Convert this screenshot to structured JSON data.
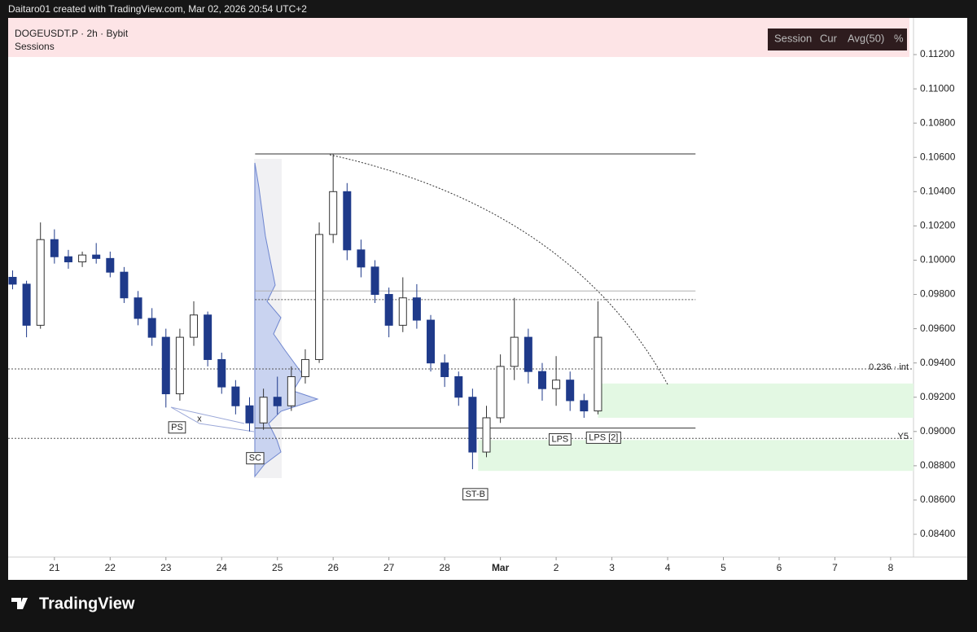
{
  "header": {
    "credit": "Daitaro01 created with TradingView.com, Mar 02, 2026 20:54 UTC+2",
    "symbol": "DOGEUSDT.P · 2h · Bybit",
    "indicator": "Sessions",
    "legend": [
      "Session",
      "Cur",
      "Avg(50)",
      "%"
    ]
  },
  "chart_data": {
    "type": "candlestick",
    "x": [
      20.25,
      20.5,
      20.75,
      21,
      21.25,
      21.5,
      21.75,
      22,
      22.25,
      22.5,
      22.75,
      23,
      23.25,
      23.5,
      23.75,
      24,
      24.25,
      24.5,
      24.75,
      25,
      25.25,
      25.5,
      25.75,
      26,
      26.25,
      26.5,
      26.75,
      27,
      27.25,
      27.5,
      27.75,
      28,
      28.25,
      28.5,
      28.75,
      29,
      29.25,
      29.5,
      29.75,
      30,
      30.25,
      30.5,
      30.75
    ],
    "open": [
      0.099,
      0.0986,
      0.0962,
      0.1012,
      0.1002,
      0.0999,
      0.1003,
      0.1001,
      0.0993,
      0.0978,
      0.0966,
      0.0955,
      0.0922,
      0.0955,
      0.0968,
      0.0942,
      0.0926,
      0.0915,
      0.0905,
      0.092,
      0.0915,
      0.0932,
      0.0942,
      0.1015,
      0.104,
      0.1006,
      0.0996,
      0.098,
      0.0962,
      0.0978,
      0.0965,
      0.094,
      0.0932,
      0.092,
      0.0888,
      0.0908,
      0.0938,
      0.0955,
      0.0935,
      0.0925,
      0.093,
      0.0918,
      0.0912
    ],
    "high": [
      0.0994,
      0.0988,
      0.1022,
      0.1018,
      0.1006,
      0.1005,
      0.101,
      0.1005,
      0.0996,
      0.0982,
      0.0972,
      0.096,
      0.096,
      0.0976,
      0.097,
      0.0946,
      0.093,
      0.092,
      0.0925,
      0.0932,
      0.0938,
      0.0948,
      0.1022,
      0.1062,
      0.1045,
      0.1012,
      0.1,
      0.0984,
      0.099,
      0.0986,
      0.0968,
      0.0945,
      0.0935,
      0.0925,
      0.0915,
      0.0945,
      0.0978,
      0.096,
      0.094,
      0.0944,
      0.0935,
      0.0922,
      0.0976
    ],
    "low": [
      0.0983,
      0.0955,
      0.096,
      0.0998,
      0.0995,
      0.0996,
      0.0998,
      0.099,
      0.0975,
      0.0962,
      0.095,
      0.0914,
      0.0918,
      0.095,
      0.0938,
      0.0922,
      0.091,
      0.09,
      0.0901,
      0.091,
      0.0912,
      0.0928,
      0.094,
      0.101,
      0.1,
      0.099,
      0.0975,
      0.0955,
      0.0958,
      0.096,
      0.0935,
      0.0926,
      0.0915,
      0.0878,
      0.0885,
      0.0905,
      0.093,
      0.0928,
      0.0918,
      0.0915,
      0.0912,
      0.0908,
      0.091
    ],
    "close": [
      0.0986,
      0.0962,
      0.1012,
      0.1002,
      0.0999,
      0.1003,
      0.1001,
      0.0993,
      0.0978,
      0.0966,
      0.0955,
      0.0922,
      0.0955,
      0.0968,
      0.0942,
      0.0926,
      0.0915,
      0.0905,
      0.092,
      0.0915,
      0.0932,
      0.0942,
      0.1015,
      0.104,
      0.1006,
      0.0996,
      0.098,
      0.0962,
      0.0978,
      0.0965,
      0.094,
      0.0932,
      0.092,
      0.0888,
      0.0908,
      0.0938,
      0.0955,
      0.0935,
      0.0925,
      0.093,
      0.0918,
      0.0912,
      0.0955
    ],
    "xlim": [
      20.17,
      36.41
    ],
    "ylim": [
      0.08267,
      0.11414
    ],
    "xticks": [
      21,
      22,
      23,
      24,
      25,
      26,
      27,
      28,
      {
        "value": 29,
        "label": "Mar"
      },
      {
        "value": 30,
        "label": "2"
      },
      {
        "value": 31,
        "label": "3"
      },
      {
        "value": 32,
        "label": "4"
      },
      {
        "value": 33,
        "label": "5"
      },
      {
        "value": 34,
        "label": "6"
      },
      {
        "value": 35,
        "label": "7"
      },
      {
        "value": 36,
        "label": "8"
      }
    ],
    "yticks": [
      {
        "value": 0.084,
        "label": "0.08400"
      },
      {
        "value": 0.086,
        "label": "0.08600"
      },
      {
        "value": 0.088,
        "label": "0.08800"
      },
      {
        "value": 0.09,
        "label": "0.09000"
      },
      {
        "value": 0.092,
        "label": "0.09200"
      },
      {
        "value": 0.094,
        "label": "0.09400"
      },
      {
        "value": 0.096,
        "label": "0.09600"
      },
      {
        "value": 0.098,
        "label": "0.09800"
      },
      {
        "value": 0.1,
        "label": "0.10000"
      },
      {
        "value": 0.102,
        "label": "0.10200"
      },
      {
        "value": 0.104,
        "label": "0.10400"
      },
      {
        "value": 0.106,
        "label": "0.10600"
      },
      {
        "value": 0.108,
        "label": "0.10800"
      },
      {
        "value": 0.11,
        "label": "0.11000"
      },
      {
        "value": 0.112,
        "label": "0.11200"
      }
    ],
    "levels": [
      {
        "value": 0.1062,
        "from": 24.6,
        "to": 32.5,
        "style": "solid",
        "color": "#333333"
      },
      {
        "value": 0.0982,
        "from": 24.6,
        "to": 32.5,
        "style": "solid",
        "color": "#b0b0b0"
      },
      {
        "value": 0.0977,
        "from": 24.6,
        "to": 32.5,
        "style": "dotted",
        "color": "#555555"
      },
      {
        "value": 0.0902,
        "from": 24.6,
        "to": 32.5,
        "style": "solid",
        "color": "#333333"
      },
      {
        "value": 0.09365,
        "from": 20.17,
        "to": 36.41,
        "style": "dotted",
        "color": "#555555",
        "label": "0.236 · int"
      },
      {
        "value": 0.0896,
        "from": 20.17,
        "to": 36.41,
        "style": "dotted",
        "color": "#555555",
        "label": "Y5"
      }
    ],
    "zones": [
      {
        "from": 30.75,
        "to": 36.41,
        "low": 0.0908,
        "high": 0.0928,
        "color": "#e3f8e3"
      },
      {
        "from": 28.6,
        "to": 36.41,
        "low": 0.0877,
        "high": 0.0895,
        "color": "#e3f8e3"
      }
    ],
    "annotations": [
      {
        "text": "PS",
        "x": 23.2,
        "y": 0.0909
      },
      {
        "text": "x",
        "x": 23.6,
        "y": 0.0914
      },
      {
        "text": "SC",
        "x": 24.6,
        "y": 0.0891
      },
      {
        "text": "ST-B",
        "x": 28.55,
        "y": 0.087
      },
      {
        "text": "LPS",
        "x": 30.07,
        "y": 0.0902
      },
      {
        "text": "LPS [2]",
        "x": 30.85,
        "y": 0.0903
      }
    ],
    "colors": {
      "up": "#ffffff",
      "down": "#1f3a8a",
      "outline": "#333333"
    }
  },
  "footer": {
    "brand": "TradingView"
  }
}
